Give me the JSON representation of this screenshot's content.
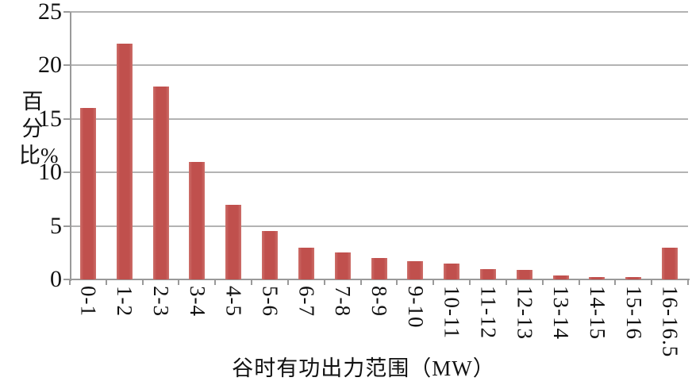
{
  "chart_data": {
    "type": "bar",
    "title": "",
    "categories": [
      "0-1",
      "1-2",
      "2-3",
      "3-4",
      "4-5",
      "5-6",
      "6-7",
      "7-8",
      "8-9",
      "9-10",
      "10-11",
      "11-12",
      "12-13",
      "13-14",
      "14-15",
      "15-16",
      "16-16.5"
    ],
    "values": [
      16,
      22,
      18,
      11,
      7,
      4.5,
      3,
      2.5,
      2,
      1.7,
      1.5,
      1,
      0.9,
      0.4,
      0.2,
      0.2,
      3
    ],
    "xlabel": "谷时有功出力范围（MW）",
    "ylabel": "百分比%",
    "ylim": [
      0,
      25
    ],
    "yticks": [
      0,
      5,
      10,
      15,
      20,
      25
    ],
    "grid": true,
    "legend_position": "none",
    "bar_color": "#c0504d",
    "bar_edge_color": "#cd6f6a",
    "grid_color": "#b3b3b3",
    "axis_color": "#9a9a9a",
    "text_color": "#111111"
  }
}
